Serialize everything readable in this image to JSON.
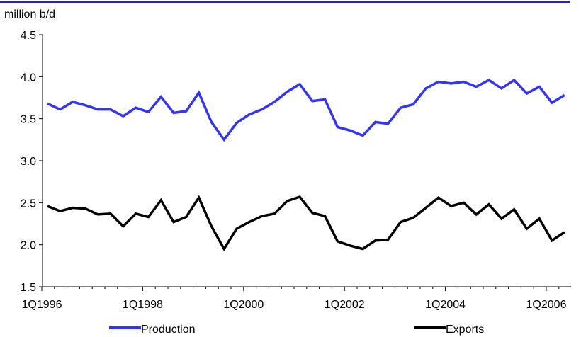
{
  "chart_data": {
    "type": "line",
    "title": "",
    "unit_label": "million b/d",
    "xlabel": "",
    "ylabel": "",
    "ylim": [
      1.5,
      4.5
    ],
    "yticks": [
      "1.5",
      "2.0",
      "2.5",
      "3.0",
      "3.5",
      "4.0",
      "4.5"
    ],
    "x_tick_labels": [
      "1Q1996",
      "1Q1998",
      "1Q2000",
      "1Q2002",
      "1Q2004",
      "1Q2006"
    ],
    "categories": [
      "1Q1996",
      "2Q1996",
      "3Q1996",
      "4Q1996",
      "1Q1997",
      "2Q1997",
      "3Q1997",
      "4Q1997",
      "1Q1998",
      "2Q1998",
      "3Q1998",
      "4Q1998",
      "1Q1999",
      "2Q1999",
      "3Q1999",
      "4Q1999",
      "1Q2000",
      "2Q2000",
      "3Q2000",
      "4Q2000",
      "1Q2001",
      "2Q2001",
      "3Q2001",
      "4Q2001",
      "1Q2002",
      "2Q2002",
      "3Q2002",
      "4Q2002",
      "1Q2003",
      "2Q2003",
      "3Q2003",
      "4Q2003",
      "1Q2004",
      "2Q2004",
      "3Q2004",
      "4Q2004",
      "1Q2005",
      "2Q2005",
      "3Q2005",
      "4Q2005",
      "1Q2006",
      "2Q2006"
    ],
    "series": [
      {
        "name": "Production",
        "color": "#3333ff",
        "values": [
          3.68,
          3.61,
          3.7,
          3.66,
          3.61,
          3.61,
          3.53,
          3.63,
          3.58,
          3.76,
          3.57,
          3.59,
          3.81,
          3.46,
          3.25,
          3.45,
          3.55,
          3.61,
          3.7,
          3.82,
          3.91,
          3.71,
          3.73,
          3.4,
          3.36,
          3.3,
          3.46,
          3.44,
          3.63,
          3.67,
          3.86,
          3.94,
          3.92,
          3.94,
          3.88,
          3.96,
          3.86,
          3.96,
          3.8,
          3.88,
          3.69,
          3.78
        ]
      },
      {
        "name": "Exports",
        "color": "#000000",
        "values": [
          2.46,
          2.4,
          2.44,
          2.43,
          2.36,
          2.37,
          2.22,
          2.37,
          2.33,
          2.53,
          2.27,
          2.33,
          2.56,
          2.22,
          1.95,
          2.19,
          2.27,
          2.34,
          2.37,
          2.52,
          2.57,
          2.38,
          2.34,
          2.04,
          1.99,
          1.95,
          2.05,
          2.06,
          2.27,
          2.32,
          2.44,
          2.56,
          2.46,
          2.5,
          2.36,
          2.48,
          2.31,
          2.42,
          2.19,
          2.31,
          2.05,
          2.15
        ]
      }
    ],
    "grid": false,
    "legend_position": "bottom",
    "header_rule_color": "#2222cc"
  }
}
